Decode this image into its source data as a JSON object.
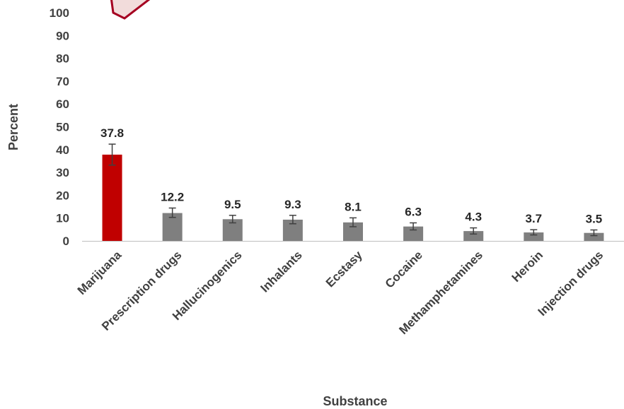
{
  "chart_data": {
    "type": "bar",
    "title": "",
    "xlabel": "Substance",
    "ylabel": "Percent",
    "ylim": [
      0,
      100
    ],
    "yticks": [
      0,
      10,
      20,
      30,
      40,
      50,
      60,
      70,
      80,
      90,
      100
    ],
    "grid": false,
    "legend": "none",
    "categories": [
      "Marijuana",
      "Prescription drugs",
      "Hallucinogenics",
      "Inhalants",
      "Ecstasy",
      "Cocaine",
      "Methamphetamines",
      "Heroin",
      "Injection drugs"
    ],
    "series": [
      {
        "values": [
          37.8,
          12.2,
          9.5,
          9.3,
          8.1,
          6.3,
          4.3,
          3.7,
          3.5
        ],
        "error_low": [
          33.2,
          10.3,
          7.9,
          7.5,
          6.2,
          4.8,
          3.0,
          2.6,
          2.3
        ],
        "error_high": [
          42.4,
          14.4,
          11.2,
          11.2,
          10.1,
          7.9,
          5.7,
          4.9,
          4.8
        ],
        "data_labels": [
          "37.8",
          "12.2",
          "9.5",
          "9.3",
          "8.1",
          "6.3",
          "4.3",
          "3.7",
          "3.5"
        ]
      }
    ],
    "colors": {
      "highlight": "#C00000",
      "default": "#7F7F7F",
      "error_bar": "#404040",
      "axis": "#BFBFBF",
      "callout_fill": "#F2DCDB",
      "callout_border": "#A50021"
    }
  }
}
